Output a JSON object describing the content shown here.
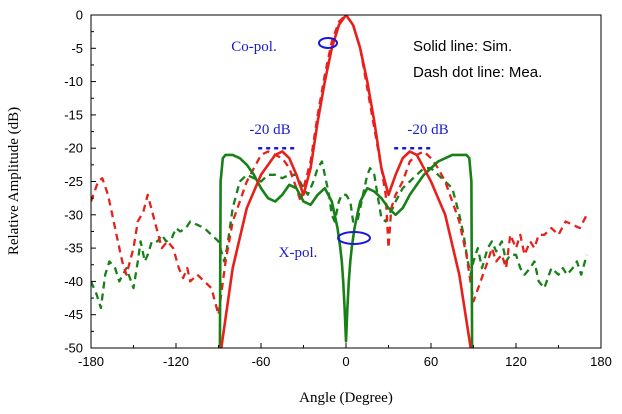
{
  "chart_data": {
    "type": "line",
    "xlabel": "Angle (Degree)",
    "ylabel": "Relative Amplitude (dB)",
    "xlim": [
      -180,
      180
    ],
    "ylim": [
      -50,
      0
    ],
    "xticks": [
      -180,
      -120,
      -60,
      0,
      60,
      120,
      180
    ],
    "yticks": [
      0,
      -5,
      -10,
      -15,
      -20,
      -25,
      -30,
      -35,
      -40,
      -45,
      -50
    ],
    "legend_text": [
      "Solid line: Sim.",
      "Dash dot line: Mea."
    ],
    "annotations": {
      "copol": "Co-pol.",
      "xpol": "X-pol.",
      "left_level": "-20 dB",
      "right_level": "-20 dB"
    },
    "reference_line": {
      "y": -20,
      "x_ranges": [
        [
          -62,
          -34
        ],
        [
          34,
          62
        ]
      ],
      "color": "#1a1ad6"
    },
    "colors": {
      "copol": "#e8201b",
      "xpol": "#178017",
      "annotation": "#1a1ad6"
    },
    "series": [
      {
        "style": "solid",
        "color": "#e8201b",
        "x": [
          -88,
          -80,
          -70,
          -60,
          -50,
          -45,
          -40,
          -35,
          -30,
          -25,
          -20,
          -15,
          -10,
          -5,
          0,
          5,
          10,
          15,
          20,
          25,
          30,
          35,
          40,
          45,
          50,
          55,
          60,
          70,
          80,
          88
        ],
        "y": [
          -50,
          -38,
          -29,
          -24,
          -21,
          -20.5,
          -21.5,
          -24,
          -27,
          -23,
          -16,
          -10,
          -5,
          -1.5,
          0,
          -1.5,
          -5,
          -10,
          -16,
          -23,
          -27,
          -24,
          -21.5,
          -20.5,
          -21,
          -23,
          -25,
          -30,
          -39,
          -50
        ]
      },
      {
        "style": "dash",
        "color": "#e8201b",
        "x": [
          -180,
          -175,
          -172,
          -168,
          -165,
          -162,
          -158,
          -155,
          -150,
          -147,
          -143,
          -140,
          -135,
          -130,
          -126,
          -122,
          -118,
          -115,
          -112,
          -110,
          -105,
          -100,
          -95,
          -90,
          -85,
          -80,
          -75,
          -70,
          -65,
          -60,
          -55,
          -50,
          -45,
          -40,
          -35,
          -32,
          -30,
          -25,
          -20,
          -15,
          -10,
          -5,
          0,
          5,
          10,
          15,
          20,
          25,
          28,
          30,
          32,
          35,
          40,
          45,
          50,
          55,
          60,
          65,
          70,
          75,
          80,
          85,
          90,
          95,
          100,
          103,
          106,
          110,
          113,
          116,
          120,
          123,
          126,
          130,
          133,
          136,
          140,
          145,
          150,
          155,
          160,
          165,
          170
        ],
        "y": [
          -28,
          -25,
          -24.5,
          -27,
          -30,
          -33,
          -37,
          -39,
          -35,
          -31,
          -29.5,
          -27,
          -31,
          -35,
          -34,
          -35,
          -38,
          -39.5,
          -38,
          -40,
          -39,
          -40,
          -41,
          -45,
          -37,
          -31,
          -28,
          -25,
          -23,
          -21,
          -20.5,
          -21,
          -21.5,
          -23,
          -26,
          -28,
          -26,
          -22,
          -15,
          -9,
          -4,
          -1,
          0,
          -1.5,
          -5,
          -11,
          -17,
          -23,
          -27,
          -35,
          -29,
          -27,
          -25,
          -22,
          -21,
          -20.5,
          -21.5,
          -23,
          -25,
          -28,
          -31,
          -36,
          -43,
          -40,
          -37,
          -35,
          -37,
          -36,
          -38,
          -33,
          -35,
          -33,
          -36,
          -34,
          -35,
          -33,
          -33,
          -32,
          -33,
          -31,
          -31.5,
          -32,
          -30
        ]
      },
      {
        "style": "solid",
        "color": "#178017",
        "x": [
          -89,
          -88.5,
          -87,
          -85,
          -80,
          -75,
          -70,
          -65,
          -60,
          -55,
          -50,
          -45,
          -40,
          -35,
          -30,
          -25,
          -20,
          -15,
          -10,
          -8,
          -6,
          -4,
          -3,
          -2,
          -1,
          0,
          1,
          2,
          3,
          4,
          6,
          8,
          10,
          15,
          20,
          25,
          30,
          35,
          40,
          45,
          50,
          55,
          60,
          65,
          70,
          75,
          80,
          85,
          87,
          88.5,
          89
        ],
        "y": [
          -50,
          -25,
          -21.5,
          -21,
          -21,
          -21.5,
          -22.5,
          -24,
          -26,
          -27.5,
          -28,
          -27,
          -25.5,
          -26,
          -28,
          -28.5,
          -27,
          -26,
          -28,
          -30,
          -32,
          -35,
          -37,
          -40,
          -44,
          -49,
          -44,
          -40,
          -37,
          -35,
          -32,
          -30,
          -28,
          -26,
          -26.5,
          -27.5,
          -29,
          -30,
          -29,
          -27,
          -25.5,
          -24,
          -23,
          -22,
          -21.5,
          -21,
          -21,
          -21,
          -21.5,
          -25,
          -50
        ]
      },
      {
        "style": "dash",
        "color": "#178017",
        "x": [
          -180,
          -176,
          -173,
          -170,
          -167,
          -163,
          -160,
          -155,
          -150,
          -147,
          -145,
          -142,
          -140,
          -137,
          -133,
          -130,
          -127,
          -123,
          -120,
          -117,
          -113,
          -110,
          -105,
          -100,
          -95,
          -90,
          -88,
          -86,
          -84,
          -80,
          -75,
          -70,
          -65,
          -60,
          -55,
          -50,
          -45,
          -40,
          -35,
          -30,
          -27,
          -25,
          -23,
          -20,
          -17,
          -15,
          -12,
          -10,
          -8,
          -5,
          -3,
          0,
          3,
          5,
          8,
          10,
          12,
          15,
          17,
          20,
          23,
          25,
          28,
          30,
          33,
          35,
          40,
          45,
          50,
          55,
          60,
          65,
          70,
          75,
          80,
          83,
          86,
          88,
          90,
          93,
          96,
          100,
          103,
          106,
          110,
          113,
          116,
          120,
          123,
          126,
          130,
          133,
          136,
          140,
          145,
          150,
          153,
          156,
          160,
          163,
          166,
          170
        ],
        "y": [
          -40,
          -42,
          -44,
          -39,
          -37,
          -38,
          -40,
          -38,
          -41,
          -37,
          -34,
          -37,
          -36,
          -34,
          -34,
          -33,
          -34,
          -33.5,
          -32,
          -32.5,
          -32,
          -31,
          -31.5,
          -32,
          -33,
          -34,
          -35.5,
          -37,
          -35,
          -29,
          -25,
          -24,
          -24.5,
          -25,
          -24,
          -24,
          -24.5,
          -24,
          -24,
          -26,
          -27,
          -26,
          -25,
          -23,
          -22,
          -24,
          -27,
          -30,
          -31,
          -28,
          -27,
          -27,
          -28,
          -31,
          -31,
          -29,
          -27,
          -24,
          -23,
          -24,
          -28,
          -30.5,
          -31,
          -30,
          -29,
          -28,
          -26,
          -25,
          -24,
          -23,
          -23,
          -24,
          -25,
          -26,
          -30,
          -33,
          -37,
          -39,
          -37,
          -35,
          -38,
          -35,
          -34,
          -35.5,
          -34,
          -37,
          -36,
          -36,
          -38,
          -39,
          -38,
          -37,
          -40,
          -41,
          -38,
          -39,
          -38,
          -39,
          -38,
          -37,
          -39,
          -36
        ]
      }
    ]
  }
}
